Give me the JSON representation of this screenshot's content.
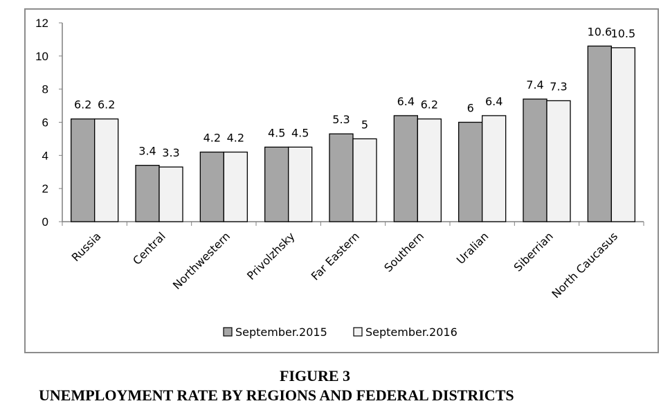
{
  "chart_data": {
    "type": "bar",
    "categories": [
      "Russia",
      "Central",
      "Northwestern",
      "Privolzhsky",
      "Far Eastern",
      "Southern",
      "Uralian",
      "Siberrian",
      "North Caucasus"
    ],
    "series": [
      {
        "name": "September.2015",
        "values": [
          6.2,
          3.4,
          4.2,
          4.5,
          5.3,
          6.4,
          6,
          7.4,
          10.6
        ],
        "color": "#a6a6a6"
      },
      {
        "name": "September.2016",
        "values": [
          6.2,
          3.3,
          4.2,
          4.5,
          5,
          6.2,
          6.4,
          7.3,
          10.5
        ],
        "color": "#f2f2f2"
      }
    ],
    "y_ticks": [
      0,
      2,
      4,
      6,
      8,
      10,
      12
    ],
    "ylim": [
      0,
      12
    ],
    "grid": false,
    "legend_position": "bottom",
    "data_labels": true
  },
  "figure": {
    "number": "FIGURE 3",
    "caption": "UNEMPLOYMENT RATE BY REGIONS AND FEDERAL DISTRICTS"
  }
}
